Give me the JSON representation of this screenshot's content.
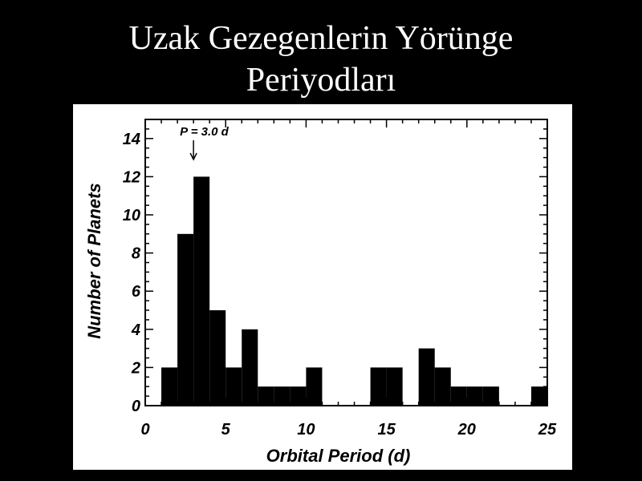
{
  "slide": {
    "title_line1": "Uzak Gezegenlerin Yörünge",
    "title_line2": "Periyodları"
  },
  "chart_data": {
    "type": "bar",
    "xlabel": "Orbital Period (d)",
    "ylabel": "Number of Planets",
    "xlim": [
      0,
      25
    ],
    "ylim": [
      0,
      15
    ],
    "x_ticks": [
      0,
      5,
      10,
      15,
      20,
      25
    ],
    "y_ticks": [
      0,
      2,
      4,
      6,
      8,
      10,
      12,
      14
    ],
    "bin_width": 1,
    "bins": [
      {
        "x0": 1,
        "x1": 2,
        "count": 2
      },
      {
        "x0": 2,
        "x1": 3,
        "count": 9
      },
      {
        "x0": 3,
        "x1": 4,
        "count": 12
      },
      {
        "x0": 4,
        "x1": 5,
        "count": 5
      },
      {
        "x0": 5,
        "x1": 6,
        "count": 2
      },
      {
        "x0": 6,
        "x1": 7,
        "count": 4
      },
      {
        "x0": 7,
        "x1": 8,
        "count": 1
      },
      {
        "x0": 8,
        "x1": 9,
        "count": 1
      },
      {
        "x0": 9,
        "x1": 10,
        "count": 1
      },
      {
        "x0": 10,
        "x1": 11,
        "count": 2
      },
      {
        "x0": 11,
        "x1": 12,
        "count": 0
      },
      {
        "x0": 12,
        "x1": 13,
        "count": 0
      },
      {
        "x0": 13,
        "x1": 14,
        "count": 0
      },
      {
        "x0": 14,
        "x1": 15,
        "count": 2
      },
      {
        "x0": 15,
        "x1": 16,
        "count": 2
      },
      {
        "x0": 16,
        "x1": 17,
        "count": 0
      },
      {
        "x0": 17,
        "x1": 18,
        "count": 3
      },
      {
        "x0": 18,
        "x1": 19,
        "count": 2
      },
      {
        "x0": 19,
        "x1": 20,
        "count": 1
      },
      {
        "x0": 20,
        "x1": 21,
        "count": 1
      },
      {
        "x0": 21,
        "x1": 22,
        "count": 1
      },
      {
        "x0": 22,
        "x1": 23,
        "count": 0
      },
      {
        "x0": 23,
        "x1": 24,
        "count": 0
      },
      {
        "x0": 24,
        "x1": 25,
        "count": 1
      }
    ],
    "annotation": {
      "text": "P = 3.0 d",
      "x": 3.0
    },
    "colors": {
      "bars": "#000000",
      "background": "#ffffff",
      "slide_background": "#000000",
      "title": "#ffffff"
    }
  }
}
